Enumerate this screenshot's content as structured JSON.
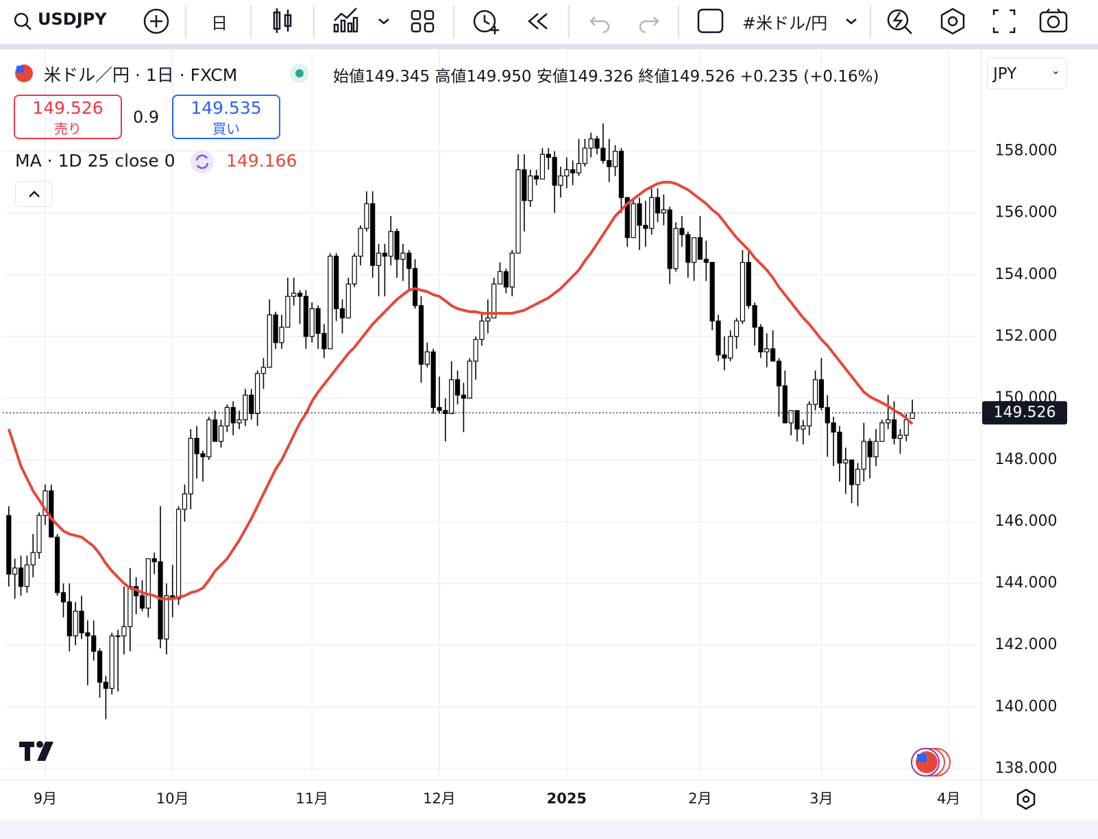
{
  "toolbar": {
    "symbol": "USDJPY",
    "interval": "日",
    "watchlist": "#米ドル/円"
  },
  "legend": {
    "title": "米ドル／円 · 1日 · FXCM",
    "open_label": "始値",
    "open": "149.345",
    "high_label": "高値",
    "high": "149.950",
    "low_label": "安値",
    "low": "149.326",
    "close_label": "終値",
    "close": "149.526",
    "change": "+0.235 (+0.16%)"
  },
  "trade": {
    "sell_label": "売り",
    "spread": "0.9",
    "buy_price": "149.535",
    "buy_label": "買い"
  },
  "indicator": {
    "label": "MA · 1D 25 close 0",
    "value": "149.166"
  },
  "currency": "JPY",
  "chart_data": {
    "type": "candlestick",
    "open": [
      146.2,
      144.3,
      144.5,
      143.9,
      144.6,
      145.0,
      146.2,
      147.0,
      145.5,
      143.7,
      143.4,
      142.3,
      143.1,
      142.4,
      142.3,
      141.8,
      140.8,
      140.6,
      142.3,
      142.3,
      142.6,
      143.9,
      143.6,
      143.2,
      144.8,
      144.7,
      142.2,
      143.6,
      143.5,
      146.4,
      146.9,
      148.7,
      148.2,
      148.1,
      149.3,
      148.6,
      149.1,
      149.7,
      149.2,
      149.3,
      150.1,
      149.5,
      150.8,
      151.0,
      152.7,
      151.8,
      152.3,
      153.3,
      153.4,
      153.3,
      152.0,
      152.9,
      152.1,
      151.6,
      154.6,
      152.9,
      152.6,
      153.7,
      154.6,
      155.5,
      156.3,
      154.3,
      154.7,
      154.6,
      155.4,
      154.5,
      154.7,
      154.2,
      153.0,
      151.1,
      151.5,
      149.7,
      149.6,
      149.5,
      150.6,
      150.1,
      150.0,
      151.2,
      151.9,
      152.5,
      152.6,
      153.7,
      154.1,
      153.6,
      154.7,
      157.4,
      156.4,
      157.2,
      157.1,
      157.9,
      157.8,
      156.9,
      157.2,
      157.4,
      157.3,
      157.6,
      158.1,
      158.4,
      158.1,
      157.7,
      157.5,
      158.0,
      156.5,
      155.2,
      156.3,
      155.6,
      155.5,
      156.5,
      156.0,
      156.1,
      154.2,
      155.5,
      155.3,
      154.4,
      155.2,
      154.5,
      154.4,
      152.5,
      151.4,
      151.3,
      152.0,
      152.5,
      154.4,
      153.0,
      152.3,
      151.5,
      151.6,
      151.2,
      150.4,
      149.2,
      149.6,
      149.0,
      149.1,
      149.8,
      150.6,
      149.7,
      149.2,
      148.9,
      147.9,
      148.0,
      147.2,
      147.7,
      148.6,
      148.1,
      148.6,
      149.2,
      149.3,
      148.7,
      148.8,
      149.345
    ],
    "high": [
      146.5,
      144.8,
      144.9,
      144.9,
      145.6,
      146.3,
      147.2,
      147.2,
      145.6,
      144.0,
      144.0,
      143.4,
      143.6,
      142.8,
      142.8,
      141.9,
      141.0,
      142.4,
      142.5,
      143.9,
      144.5,
      144.2,
      144.1,
      144.8,
      145.0,
      146.5,
      144.0,
      144.6,
      146.5,
      147.2,
      149.0,
      149.1,
      148.3,
      149.4,
      149.6,
      149.3,
      149.8,
      149.9,
      149.6,
      150.3,
      150.3,
      150.9,
      151.3,
      153.2,
      152.8,
      152.7,
      153.9,
      153.9,
      153.5,
      153.5,
      153.1,
      153.0,
      152.4,
      154.7,
      154.7,
      153.2,
      153.9,
      154.7,
      155.6,
      156.7,
      156.7,
      155.0,
      155.0,
      155.9,
      155.5,
      155.0,
      154.8,
      154.5,
      153.3,
      151.8,
      151.6,
      150.7,
      150.0,
      151.2,
      150.9,
      150.5,
      151.3,
      152.0,
      152.8,
      153.2,
      153.9,
      154.4,
      154.2,
      154.8,
      157.9,
      157.9,
      157.4,
      157.4,
      158.1,
      158.1,
      158.0,
      157.5,
      157.8,
      157.7,
      158.4,
      158.4,
      158.6,
      158.5,
      158.9,
      158.4,
      158.2,
      158.1,
      156.5,
      156.5,
      156.5,
      156.4,
      156.8,
      156.8,
      156.6,
      156.2,
      155.7,
      155.9,
      155.4,
      155.2,
      155.9,
      155.1,
      154.4,
      152.7,
      152.0,
      152.2,
      152.6,
      154.8,
      154.8,
      153.1,
      152.4,
      152.1,
      152.2,
      151.3,
      150.9,
      149.6,
      149.6,
      149.3,
      149.9,
      150.9,
      151.3,
      150.1,
      149.4,
      149.1,
      148.4,
      148.0,
      147.9,
      149.2,
      148.7,
      149.0,
      149.3,
      150.1,
      149.9,
      149.0,
      149.5,
      149.95
    ],
    "low": [
      143.9,
      143.5,
      143.6,
      143.7,
      144.2,
      144.8,
      145.9,
      145.5,
      143.6,
      142.9,
      141.8,
      142.0,
      142.2,
      140.7,
      141.5,
      140.3,
      139.6,
      140.4,
      140.5,
      141.7,
      141.8,
      143.0,
      143.1,
      142.9,
      144.3,
      141.9,
      141.7,
      142.9,
      143.3,
      146.0,
      146.4,
      147.4,
      147.3,
      148.0,
      148.6,
      148.4,
      148.9,
      148.8,
      149.0,
      149.1,
      149.3,
      149.1,
      150.3,
      151.0,
      151.6,
      151.6,
      152.3,
      153.0,
      152.4,
      151.6,
      151.8,
      151.6,
      151.3,
      151.6,
      152.5,
      152.1,
      152.6,
      153.6,
      154.3,
      155.4,
      153.9,
      153.3,
      153.3,
      154.3,
      153.9,
      153.8,
      153.5,
      152.9,
      150.5,
      151.0,
      149.5,
      149.5,
      148.6,
      149.5,
      149.8,
      148.9,
      150.0,
      150.6,
      151.7,
      152.1,
      152.6,
      153.7,
      153.4,
      153.3,
      154.7,
      155.4,
      156.2,
      156.9,
      157.1,
      157.4,
      156.0,
      156.5,
      156.8,
      156.9,
      157.2,
      157.5,
      157.8,
      157.9,
      157.6,
      157.0,
      157.2,
      156.0,
      154.9,
      155.2,
      154.8,
      154.9,
      155.3,
      155.7,
      155.6,
      153.7,
      154.1,
      154.9,
      153.9,
      153.8,
      154.5,
      153.8,
      152.2,
      151.2,
      150.9,
      151.2,
      151.6,
      152.4,
      152.9,
      151.7,
      151.3,
      151.0,
      151.2,
      149.4,
      149.2,
      148.8,
      148.6,
      148.5,
      148.8,
      149.6,
      149.6,
      148.1,
      147.8,
      147.3,
      146.9,
      146.6,
      146.5,
      147.3,
      147.4,
      147.8,
      148.6,
      149.0,
      148.5,
      148.2,
      148.6,
      149.326
    ],
    "close": [
      144.3,
      144.5,
      143.9,
      144.6,
      145.0,
      146.2,
      147.0,
      145.5,
      143.7,
      143.4,
      142.3,
      143.1,
      142.4,
      142.3,
      141.8,
      140.8,
      140.6,
      142.3,
      142.3,
      142.6,
      143.9,
      143.6,
      143.2,
      144.8,
      144.7,
      142.2,
      143.6,
      143.5,
      146.4,
      146.9,
      148.7,
      148.2,
      148.1,
      149.3,
      148.6,
      149.1,
      149.7,
      149.2,
      149.3,
      150.1,
      149.5,
      150.8,
      151.0,
      152.7,
      151.8,
      152.3,
      153.3,
      153.4,
      153.3,
      152.0,
      152.9,
      152.1,
      151.6,
      154.6,
      152.9,
      152.6,
      153.7,
      154.6,
      155.5,
      156.3,
      154.3,
      154.7,
      154.6,
      155.4,
      154.5,
      154.7,
      154.2,
      153.0,
      151.1,
      151.5,
      149.7,
      149.6,
      149.5,
      150.6,
      150.1,
      150.0,
      151.2,
      151.9,
      152.5,
      152.6,
      153.7,
      154.1,
      153.6,
      154.7,
      157.4,
      156.4,
      157.2,
      157.1,
      157.9,
      157.8,
      156.9,
      157.2,
      157.4,
      157.3,
      157.6,
      158.1,
      158.4,
      158.1,
      157.7,
      157.5,
      158.0,
      156.5,
      155.2,
      156.3,
      155.6,
      155.5,
      156.5,
      156.0,
      156.1,
      154.2,
      155.5,
      155.3,
      154.4,
      155.2,
      154.5,
      154.4,
      152.5,
      151.4,
      151.3,
      152.0,
      152.5,
      154.4,
      153.0,
      152.3,
      151.5,
      151.6,
      151.2,
      150.4,
      149.2,
      149.6,
      149.0,
      149.1,
      149.8,
      150.6,
      149.7,
      149.2,
      148.9,
      147.9,
      148.0,
      147.2,
      147.7,
      148.6,
      148.1,
      148.6,
      149.2,
      149.3,
      148.7,
      148.8,
      149.3,
      149.526
    ],
    "ma": [
      149.0,
      148.4,
      147.8,
      147.4,
      147.0,
      146.7,
      146.4,
      146.1,
      145.9,
      145.7,
      145.6,
      145.55,
      145.5,
      145.35,
      145.2,
      144.95,
      144.65,
      144.4,
      144.2,
      144.0,
      143.85,
      143.8,
      143.7,
      143.65,
      143.6,
      143.5,
      143.5,
      143.5,
      143.55,
      143.6,
      143.7,
      143.75,
      143.85,
      144.1,
      144.4,
      144.6,
      144.8,
      145.1,
      145.4,
      145.75,
      146.1,
      146.5,
      146.9,
      147.3,
      147.7,
      148.0,
      148.4,
      148.8,
      149.2,
      149.5,
      149.9,
      150.2,
      150.45,
      150.7,
      150.95,
      151.2,
      151.45,
      151.65,
      151.9,
      152.15,
      152.4,
      152.6,
      152.8,
      153.0,
      153.2,
      153.35,
      153.5,
      153.55,
      153.5,
      153.45,
      153.35,
      153.3,
      153.15,
      153.0,
      152.9,
      152.85,
      152.8,
      152.8,
      152.75,
      152.75,
      152.75,
      152.75,
      152.75,
      152.75,
      152.8,
      152.85,
      152.95,
      153.05,
      153.15,
      153.25,
      153.4,
      153.55,
      153.75,
      153.95,
      154.15,
      154.45,
      154.7,
      155.0,
      155.3,
      155.6,
      155.9,
      156.1,
      156.3,
      156.45,
      156.6,
      156.75,
      156.85,
      156.95,
      157.0,
      157.0,
      156.95,
      156.85,
      156.75,
      156.6,
      156.45,
      156.3,
      156.1,
      155.95,
      155.7,
      155.45,
      155.2,
      155.0,
      154.8,
      154.55,
      154.35,
      154.15,
      153.9,
      153.6,
      153.35,
      153.1,
      152.85,
      152.6,
      152.4,
      152.15,
      151.9,
      151.7,
      151.45,
      151.2,
      150.95,
      150.7,
      150.45,
      150.2,
      150.05,
      149.95,
      149.85,
      149.75,
      149.6,
      149.5,
      149.35,
      149.166
    ],
    "up_color": "#ffffff",
    "down_color": "#000000",
    "ma_color": "#e5483b",
    "xlim": [
      -1,
      160.4
    ],
    "xticks": [
      {
        "value": 6,
        "label": "9月"
      },
      {
        "value": 27,
        "label": "10月"
      },
      {
        "value": 50,
        "label": "11月"
      },
      {
        "value": 71,
        "label": "12月"
      },
      {
        "value": 92,
        "label": "2025"
      },
      {
        "value": 114,
        "label": "2月"
      },
      {
        "value": 134,
        "label": "3月"
      },
      {
        "value": 155,
        "label": "4月"
      }
    ],
    "ylim": [
      137.63,
      161.3
    ],
    "yticks": [
      {
        "value": 138,
        "label": "138.000"
      },
      {
        "value": 140,
        "label": "140.000"
      },
      {
        "value": 142,
        "label": "142.000"
      },
      {
        "value": 144,
        "label": "144.000"
      },
      {
        "value": 146,
        "label": "146.000"
      },
      {
        "value": 148,
        "label": "148.000"
      },
      {
        "value": 150,
        "label": "150.000"
      },
      {
        "value": 152,
        "label": "152.000"
      },
      {
        "value": 154,
        "label": "154.000"
      },
      {
        "value": 156,
        "label": "156.000"
      },
      {
        "value": 158,
        "label": "158.000"
      }
    ],
    "grid": true,
    "price_line": true
  }
}
